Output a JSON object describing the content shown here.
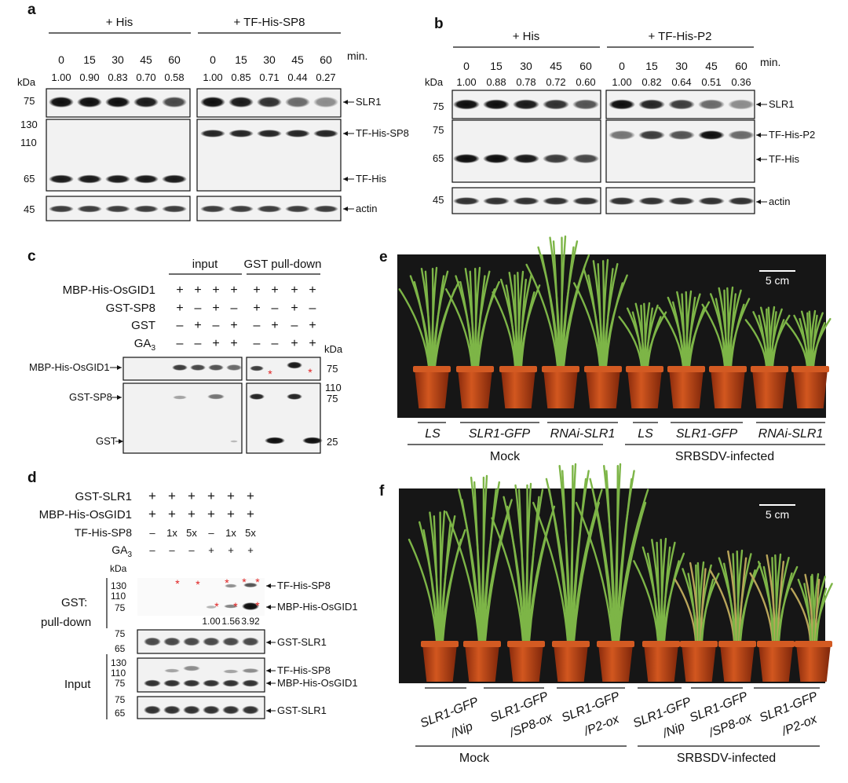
{
  "panels": {
    "a": "a",
    "b": "b",
    "c": "c",
    "d": "d",
    "e": "e",
    "f": "f"
  },
  "common": {
    "kda": "kDa",
    "min": "min.",
    "scale_bar": "5 cm",
    "times": [
      "0",
      "15",
      "30",
      "45",
      "60"
    ]
  },
  "panel_a": {
    "group1": "+ His",
    "group2": "+ TF-His-SP8",
    "ratios1": [
      "1.00",
      "0.90",
      "0.83",
      "0.70",
      "0.58"
    ],
    "ratios2": [
      "1.00",
      "0.85",
      "0.71",
      "0.44",
      "0.27"
    ],
    "mw": [
      "75",
      "130",
      "110",
      "65",
      "45"
    ],
    "bands": [
      "SLR1",
      "TF-His-SP8",
      "TF-His",
      "actin"
    ]
  },
  "panel_b": {
    "group1": "+ His",
    "group2": "+ TF-His-P2",
    "ratios1": [
      "1.00",
      "0.88",
      "0.78",
      "0.72",
      "0.60"
    ],
    "ratios2": [
      "1.00",
      "0.82",
      "0.64",
      "0.51",
      "0.36"
    ],
    "mw": [
      "75",
      "75",
      "65",
      "45"
    ],
    "bands": [
      "SLR1",
      "TF-His-P2",
      "TF-His",
      "actin"
    ]
  },
  "panel_c": {
    "group_input": "input",
    "group_pull": "GST pull-down",
    "rows": [
      {
        "label": "MBP-His-OsGID1",
        "signs": [
          "+",
          "+",
          "+",
          "+",
          "+",
          "+",
          "+",
          "+"
        ]
      },
      {
        "label": "GST-SP8",
        "signs": [
          "+",
          "–",
          "+",
          "–",
          "+",
          "–",
          "+",
          "–"
        ]
      },
      {
        "label": "GST",
        "signs": [
          "–",
          "+",
          "–",
          "+",
          "–",
          "+",
          "–",
          "+"
        ]
      },
      {
        "label": "GA3",
        "signs": [
          "–",
          "–",
          "+",
          "+",
          "–",
          "–",
          "+",
          "+"
        ]
      }
    ],
    "blot_labels": [
      "MBP-His-OsGID1",
      "GST-SP8",
      "GST"
    ],
    "mw": [
      "75",
      "110",
      "75",
      "25"
    ]
  },
  "panel_d": {
    "rows": [
      {
        "label": "GST-SLR1",
        "signs": [
          "+",
          "+",
          "+",
          "+",
          "+",
          "+"
        ]
      },
      {
        "label": "MBP-His-OsGID1",
        "signs": [
          "+",
          "+",
          "+",
          "+",
          "+",
          "+"
        ]
      },
      {
        "label": "TF-His-SP8",
        "signs": [
          "–",
          "1x",
          "5x",
          "–",
          "1x",
          "5x"
        ]
      },
      {
        "label": "GA3",
        "signs": [
          "–",
          "–",
          "–",
          "+",
          "+",
          "+"
        ]
      }
    ],
    "side_pull": "GST:",
    "side_pull2": "pull-down",
    "side_input": "Input",
    "quant": [
      "1.00",
      "1.56",
      "3.92"
    ],
    "mw_pull": [
      "130",
      "110",
      "75"
    ],
    "mw_slr1": [
      "75",
      "65"
    ],
    "mw_input": [
      "130",
      "110",
      "75"
    ],
    "mw_input2": [
      "75",
      "65"
    ],
    "bands_pull": [
      "TF-His-SP8",
      "MBP-His-OsGID1"
    ],
    "band_slr1": "GST-SLR1",
    "bands_input": [
      "TF-His-SP8",
      "MBP-His-OsGID1",
      "GST-SLR1"
    ]
  },
  "panel_e": {
    "genotypes": [
      "LS",
      "SLR1-GFP",
      "RNAi-SLR1",
      "LS",
      "SLR1-GFP",
      "RNAi-SLR1"
    ],
    "conditions": [
      "Mock",
      "SRBSDV-infected"
    ]
  },
  "panel_f": {
    "genotypes": [
      "SLR1-GFP\n/Nip",
      "SLR1-GFP\n/SP8-ox",
      "SLR1-GFP\n/P2-ox",
      "SLR1-GFP\n/Nip",
      "SLR1-GFP\n/SP8-ox",
      "SLR1-GFP\n/P2-ox"
    ],
    "g1a": "SLR1-GFP",
    "g1b": "/Nip",
    "g2a": "SLR1-GFP",
    "g2b": "/SP8-ox",
    "g3a": "SLR1-GFP",
    "g3b": "/P2-ox",
    "conditions": [
      "Mock",
      "SRBSDV-infected"
    ]
  },
  "colors": {
    "blot_bg": "#f2f2f2",
    "band": "#151515",
    "photo_bg": "#161616",
    "pot": "#c4461a",
    "leaf": "#7db547",
    "asterisk": "#e02020"
  }
}
